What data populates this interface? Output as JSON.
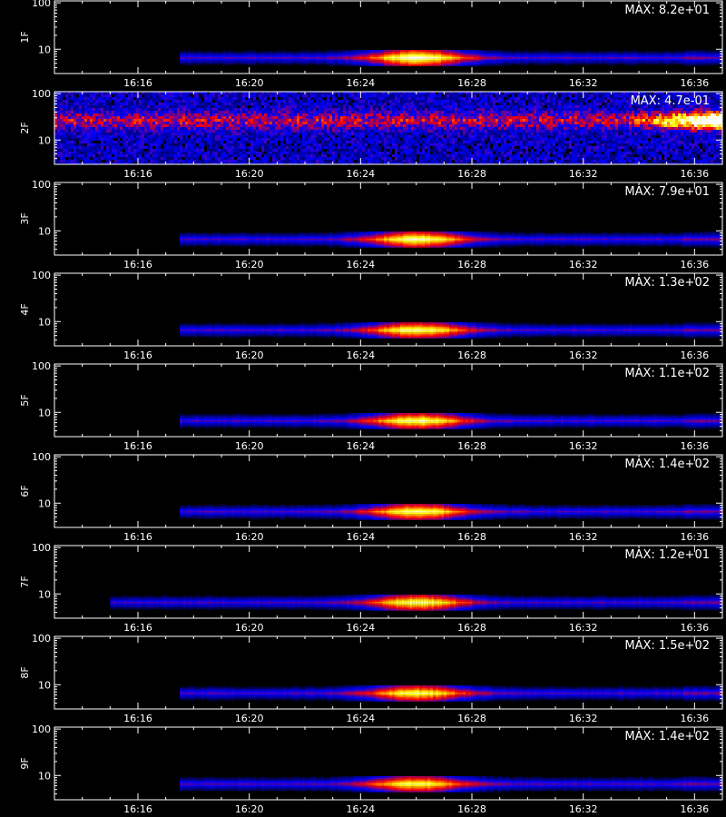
{
  "chart_data": {
    "type": "heatmap",
    "title": "",
    "x_ticks": [
      "16:16",
      "16:20",
      "16:24",
      "16:28",
      "16:32",
      "16:36"
    ],
    "x_range": [
      "16:13",
      "16:37"
    ],
    "xlabel": "",
    "y_scale": "log",
    "y_ticks": [
      "10",
      "100"
    ],
    "y_range": [
      3,
      110
    ],
    "colormap": [
      "#000000",
      "#0000ff",
      "#ff0000",
      "#ffff00",
      "#ffffff"
    ],
    "panels": [
      {
        "label": "1F",
        "max_label": "MAX: 8.2e+01",
        "pattern": "band",
        "start": "16:17:30",
        "center": "16:26",
        "peak": 1.0
      },
      {
        "label": "2F",
        "max_label": "MAX: 4.7e-01",
        "pattern": "noise",
        "hot_start": "16:33:30",
        "peak": 1.0
      },
      {
        "label": "3F",
        "max_label": "MAX: 7.9e+01",
        "pattern": "band",
        "start": "16:17:30",
        "center": "16:26",
        "peak": 0.95
      },
      {
        "label": "4F",
        "max_label": "MAX: 1.3e+02",
        "pattern": "band",
        "start": "16:17:30",
        "center": "16:26",
        "peak": 0.95
      },
      {
        "label": "5F",
        "max_label": "MAX: 1.1e+02",
        "pattern": "band",
        "start": "16:17:30",
        "center": "16:26",
        "peak": 0.95
      },
      {
        "label": "6F",
        "max_label": "MAX: 1.4e+02",
        "pattern": "band",
        "start": "16:17:30",
        "center": "16:26",
        "peak": 0.95
      },
      {
        "label": "7F",
        "max_label": "MAX: 1.2e+01",
        "pattern": "band",
        "start": "16:15",
        "center": "16:26",
        "peak": 0.95
      },
      {
        "label": "8F",
        "max_label": "MAX: 1.5e+02",
        "pattern": "band",
        "start": "16:17:30",
        "center": "16:26",
        "peak": 0.92
      },
      {
        "label": "9F",
        "max_label": "MAX: 1.4e+02",
        "pattern": "band",
        "start": "16:17:30",
        "center": "16:26",
        "peak": 0.92
      }
    ]
  }
}
